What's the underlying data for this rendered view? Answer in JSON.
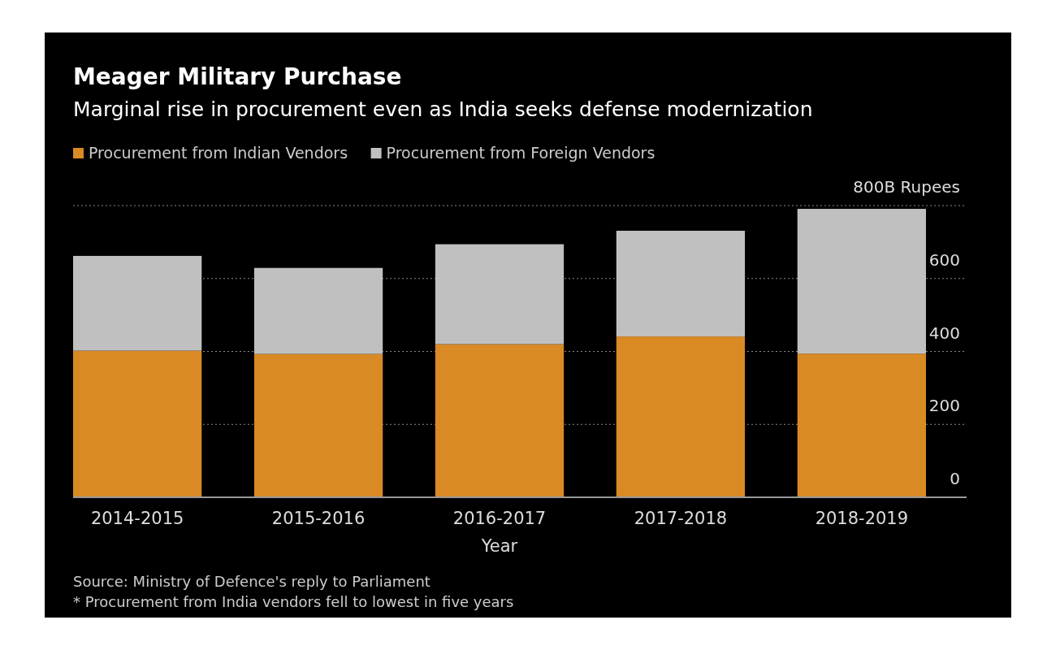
{
  "chart_data": {
    "type": "bar",
    "title": "Meager Military Purchase",
    "subtitle": "Marginal rise in procurement even as India seeks defense modernization",
    "xlabel": "Year",
    "categories": [
      "2014-2015",
      "2015-2016",
      "2016-2017",
      "2017-2018",
      "2018-2019"
    ],
    "series": [
      {
        "name": "Procurement from Indian Vendors",
        "color": "#d98a24",
        "values": [
          402,
          393,
          420,
          441,
          394
        ]
      },
      {
        "name": "Procurement from Foreign Vendors",
        "color": "#c0c0c0",
        "values": [
          260,
          236,
          274,
          290,
          397
        ]
      }
    ],
    "stacked": true,
    "ylim": [
      0,
      800
    ],
    "yticks": [
      0,
      200,
      400,
      600,
      {
        "value": 800,
        "label": "800B Rupees"
      }
    ],
    "grid": "y",
    "legend": "top left",
    "annotations": [
      "Source: Ministry of Defence's reply to Parliament",
      "* Procurement from India vendors fell to lowest in five years"
    ]
  }
}
